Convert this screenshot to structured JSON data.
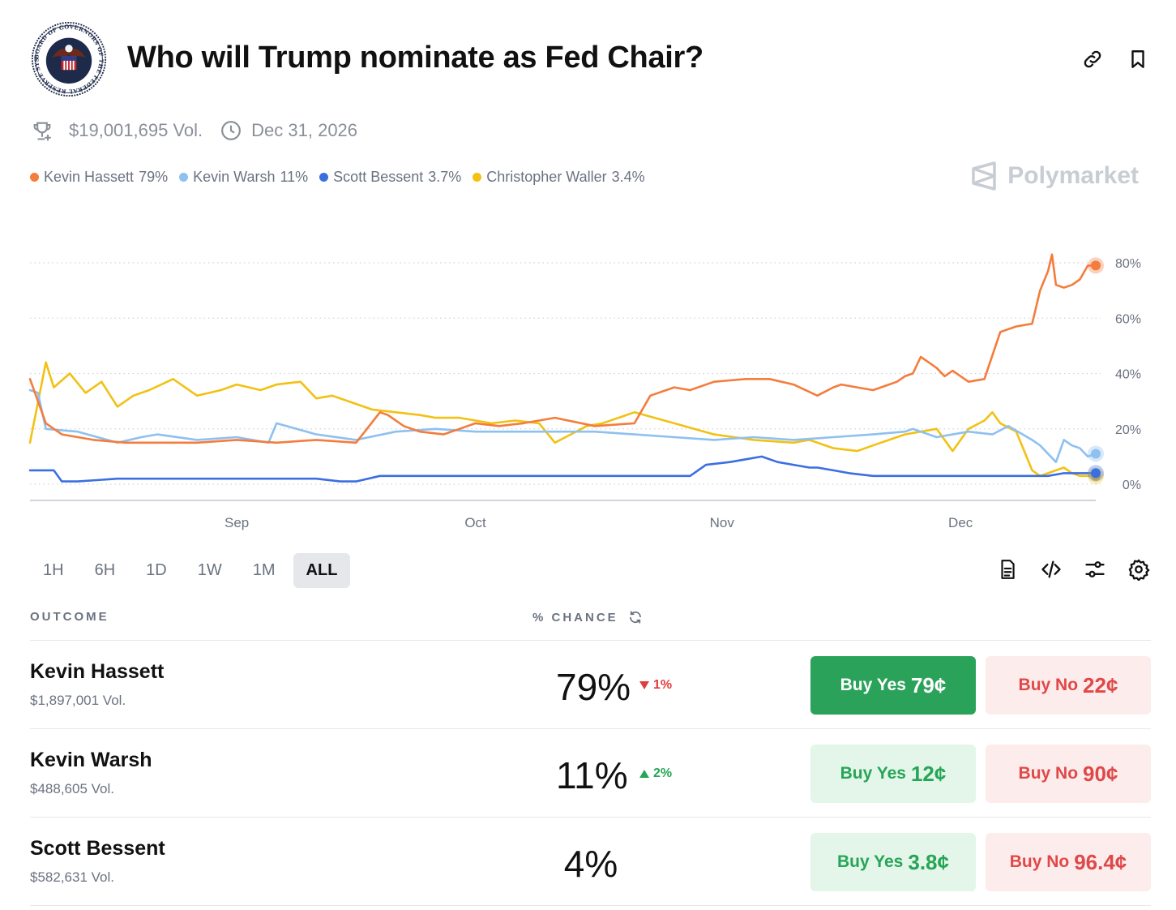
{
  "title": "Who will Trump nominate as Fed Chair?",
  "logo": {
    "alt": "Board of Governors of the Federal Reserve System seal",
    "text": "BOARD OF GOVERNORS OF THE FEDERAL RESERVE SYSTEM"
  },
  "meta": {
    "volume": "$19,001,695 Vol.",
    "end_date": "Dec 31, 2026"
  },
  "legend": [
    {
      "name": "Kevin Hassett",
      "value": "79%",
      "color": "#f47c3c"
    },
    {
      "name": "Kevin Warsh",
      "value": "11%",
      "color": "#8ec0f0"
    },
    {
      "name": "Scott Bessent",
      "value": "3.7%",
      "color": "#3b6fe0"
    },
    {
      "name": "Christopher Waller",
      "value": "3.4%",
      "color": "#f2c114"
    }
  ],
  "brand": "Polymarket",
  "chart_data": {
    "type": "line",
    "x_ticks": [
      "Sep",
      "Oct",
      "Nov",
      "Dec"
    ],
    "y_ticks": [
      "80%",
      "60%",
      "40%",
      "20%",
      "0%"
    ],
    "ylim": [
      0,
      85
    ],
    "grid": true,
    "x_range_days": [
      -26,
      108
    ],
    "series": [
      {
        "name": "Kevin Hassett",
        "color": "#f47c3c",
        "x": [
          -26,
          -25,
          -24,
          -22,
          -20,
          -18,
          -14,
          -10,
          -5,
          0,
          5,
          10,
          15,
          18,
          19,
          21,
          23,
          26,
          28,
          30,
          33,
          36,
          38,
          40,
          45,
          50,
          52,
          55,
          57,
          60,
          64,
          67,
          70,
          73,
          75,
          76,
          78,
          80,
          81,
          82,
          83,
          84,
          85,
          86,
          88,
          89,
          90,
          92,
          94,
          96,
          98,
          100,
          101,
          102,
          102.5,
          103,
          104,
          105,
          106,
          107,
          108
        ],
        "y": [
          38,
          30,
          22,
          18,
          17,
          16,
          15,
          15,
          15,
          16,
          15,
          16,
          15,
          26,
          25,
          21,
          19,
          18,
          20,
          22,
          21,
          22,
          23,
          24,
          21,
          22,
          32,
          35,
          34,
          37,
          38,
          38,
          36,
          32,
          35,
          36,
          35,
          34,
          35,
          36,
          37,
          39,
          40,
          46,
          42,
          39,
          41,
          37,
          38,
          55,
          57,
          58,
          70,
          77,
          83,
          72,
          71,
          72,
          74,
          79,
          79
        ]
      },
      {
        "name": "Kevin Warsh",
        "color": "#8ec0f0",
        "x": [
          -26,
          -25,
          -24,
          -20,
          -15,
          -12,
          -10,
          -5,
          0,
          4,
          5,
          10,
          15,
          20,
          25,
          30,
          40,
          45,
          50,
          55,
          60,
          65,
          70,
          75,
          80,
          84,
          85,
          88,
          92,
          95,
          97,
          100,
          101,
          103,
          104,
          105,
          106,
          107,
          108
        ],
        "y": [
          34,
          33,
          20,
          19,
          15,
          17,
          18,
          16,
          17,
          15,
          22,
          18,
          16,
          19,
          20,
          19,
          19,
          19,
          18,
          17,
          16,
          17,
          16,
          17,
          18,
          19,
          20,
          17,
          19,
          18,
          21,
          16,
          14,
          8,
          16,
          14,
          13,
          10,
          11
        ]
      },
      {
        "name": "Scott Bessent",
        "color": "#3b6fe0",
        "x": [
          -26,
          -23,
          -22,
          -20,
          -15,
          -10,
          -5,
          0,
          5,
          10,
          13,
          15,
          18,
          20,
          25,
          30,
          35,
          40,
          45,
          50,
          55,
          57,
          59,
          62,
          64,
          66,
          68,
          70,
          72,
          73,
          75,
          77,
          80,
          85,
          90,
          95,
          100,
          102,
          104,
          106,
          108
        ],
        "y": [
          5,
          5,
          1,
          1,
          2,
          2,
          2,
          2,
          2,
          2,
          1,
          1,
          3,
          3,
          3,
          3,
          3,
          3,
          3,
          3,
          3,
          3,
          7,
          8,
          9,
          10,
          8,
          7,
          6,
          6,
          5,
          4,
          3,
          3,
          3,
          3,
          3,
          3,
          4,
          4,
          4
        ]
      },
      {
        "name": "Christopher Waller",
        "color": "#f2c114",
        "x": [
          -26,
          -24,
          -23,
          -21,
          -19,
          -17,
          -15,
          -13,
          -11,
          -8,
          -5,
          -2,
          0,
          3,
          5,
          8,
          10,
          12,
          14,
          17,
          20,
          23,
          25,
          28,
          30,
          32,
          35,
          38,
          40,
          42,
          44,
          46,
          48,
          50,
          55,
          60,
          65,
          70,
          72,
          75,
          78,
          80,
          82,
          84,
          86,
          88,
          90,
          92,
          94,
          95,
          96,
          98,
          100,
          101,
          102,
          103,
          104,
          105,
          106,
          107,
          108
        ],
        "y": [
          15,
          44,
          35,
          40,
          33,
          37,
          28,
          32,
          34,
          38,
          32,
          34,
          36,
          34,
          36,
          37,
          31,
          32,
          30,
          27,
          26,
          25,
          24,
          24,
          23,
          22,
          23,
          22,
          15,
          18,
          21,
          22,
          24,
          26,
          22,
          18,
          16,
          15,
          16,
          13,
          12,
          14,
          16,
          18,
          19,
          20,
          12,
          20,
          23,
          26,
          22,
          19,
          5,
          3,
          4,
          5,
          6,
          4,
          3,
          3,
          3
        ]
      }
    ]
  },
  "time_ranges": [
    {
      "label": "1H",
      "active": false
    },
    {
      "label": "6H",
      "active": false
    },
    {
      "label": "1D",
      "active": false
    },
    {
      "label": "1W",
      "active": false
    },
    {
      "label": "1M",
      "active": false
    },
    {
      "label": "ALL",
      "active": true
    }
  ],
  "table": {
    "outcome_header": "OUTCOME",
    "chance_header": "% CHANCE",
    "rows": [
      {
        "name": "Kevin Hassett",
        "volume": "$1,897,001 Vol.",
        "chance": "79%",
        "delta": "1%",
        "delta_dir": "down",
        "yes_label": "Buy Yes",
        "yes_price": "79¢",
        "no_label": "Buy No",
        "no_price": "22¢",
        "yes_primary": true
      },
      {
        "name": "Kevin Warsh",
        "volume": "$488,605 Vol.",
        "chance": "11%",
        "delta": "2%",
        "delta_dir": "up",
        "yes_label": "Buy Yes",
        "yes_price": "12¢",
        "no_label": "Buy No",
        "no_price": "90¢",
        "yes_primary": false
      },
      {
        "name": "Scott Bessent",
        "volume": "$582,631 Vol.",
        "chance": "4%",
        "delta": "",
        "delta_dir": "",
        "yes_label": "Buy Yes",
        "yes_price": "3.8¢",
        "no_label": "Buy No",
        "no_price": "96.4¢",
        "yes_primary": false
      }
    ]
  }
}
